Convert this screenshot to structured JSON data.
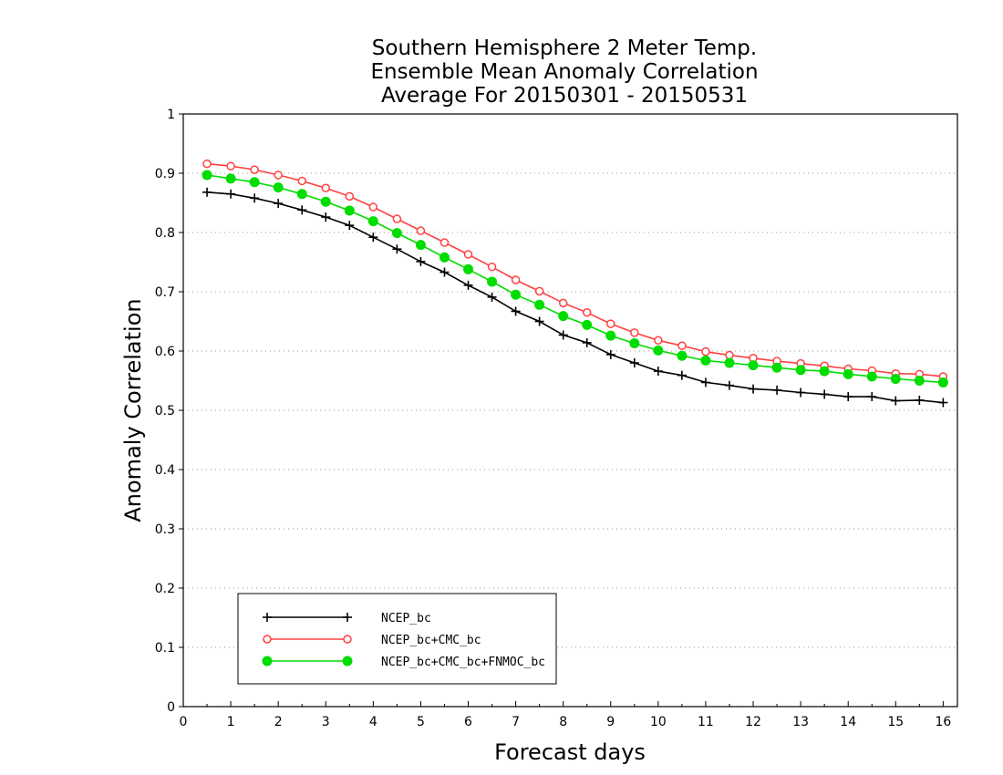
{
  "chart_data": {
    "type": "line",
    "title": [
      "Southern Hemisphere 2 Meter Temp.",
      "Ensemble Mean Anomaly Correlation",
      "Average For 20150301 - 20150531"
    ],
    "xlabel": "Forecast days",
    "ylabel": "Anomaly Correlation",
    "xlim": [
      0,
      16.3
    ],
    "ylim": [
      0,
      1
    ],
    "x_ticks": [
      "0",
      "1",
      "2",
      "3",
      "4",
      "5",
      "6",
      "7",
      "8",
      "9",
      "10",
      "11",
      "12",
      "13",
      "14",
      "15",
      "16"
    ],
    "y_ticks": [
      "0",
      "0.1",
      "0.2",
      "0.3",
      "0.4",
      "0.5",
      "0.6",
      "0.7",
      "0.8",
      "0.9",
      "1"
    ],
    "grid": "horizontal dotted",
    "legend_position": "bottom-left",
    "x": [
      0.5,
      1,
      1.5,
      2,
      2.5,
      3,
      3.5,
      4,
      4.5,
      5,
      5.5,
      6,
      6.5,
      7,
      7.5,
      8,
      8.5,
      9,
      9.5,
      10,
      10.5,
      11,
      11.5,
      12,
      12.5,
      13,
      13.5,
      14,
      14.5,
      15,
      15.5,
      16
    ],
    "series": [
      {
        "name": "NCEP_bc",
        "color": "#000000",
        "marker": "plus",
        "values": [
          0.868,
          0.865,
          0.858,
          0.849,
          0.838,
          0.826,
          0.812,
          0.792,
          0.772,
          0.751,
          0.733,
          0.711,
          0.691,
          0.667,
          0.65,
          0.627,
          0.614,
          0.594,
          0.58,
          0.566,
          0.559,
          0.547,
          0.542,
          0.536,
          0.534,
          0.53,
          0.527,
          0.523,
          0.523,
          0.516,
          0.517,
          0.513
        ]
      },
      {
        "name": "NCEP_bc+CMC_bc",
        "color": "#ff4040",
        "marker": "open-circle",
        "values": [
          0.916,
          0.912,
          0.906,
          0.897,
          0.887,
          0.875,
          0.861,
          0.843,
          0.823,
          0.803,
          0.783,
          0.763,
          0.742,
          0.72,
          0.701,
          0.681,
          0.665,
          0.646,
          0.631,
          0.618,
          0.609,
          0.599,
          0.593,
          0.588,
          0.583,
          0.579,
          0.575,
          0.57,
          0.567,
          0.562,
          0.561,
          0.557
        ]
      },
      {
        "name": "NCEP_bc+CMC_bc+FNMOC_bc",
        "color": "#00dd00",
        "marker": "filled-circle",
        "values": [
          0.897,
          0.891,
          0.885,
          0.876,
          0.865,
          0.852,
          0.837,
          0.819,
          0.799,
          0.779,
          0.758,
          0.738,
          0.717,
          0.695,
          0.678,
          0.659,
          0.644,
          0.626,
          0.613,
          0.601,
          0.592,
          0.584,
          0.58,
          0.576,
          0.572,
          0.568,
          0.566,
          0.561,
          0.557,
          0.553,
          0.55,
          0.547
        ]
      }
    ]
  }
}
